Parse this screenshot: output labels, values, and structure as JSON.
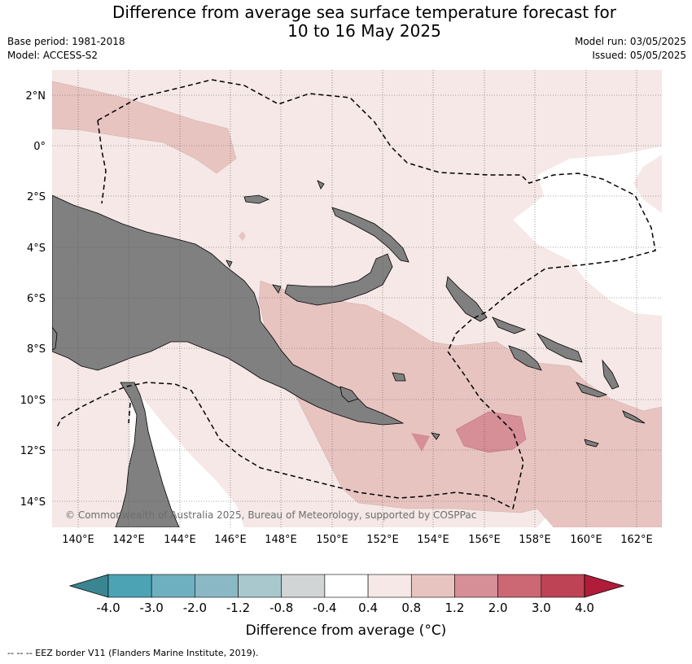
{
  "header": {
    "title_line1": "Difference from average sea surface temperature forecast for",
    "title_line2": "10 to 16 May 2025",
    "base_period": "Base period: 1981-2018",
    "model": "Model: ACCESS-S2",
    "model_run": "Model run: 03/05/2025",
    "issued": "Issued: 05/05/2025"
  },
  "map": {
    "lat_labels": [
      "2°N",
      "0°",
      "2°S",
      "4°S",
      "6°S",
      "8°S",
      "10°S",
      "12°S",
      "14°S"
    ],
    "lon_labels": [
      "140°E",
      "142°E",
      "144°E",
      "146°E",
      "148°E",
      "150°E",
      "152°E",
      "154°E",
      "156°E",
      "158°E",
      "160°E",
      "162°E"
    ],
    "copyright": "© Commonwealth of Australia 2025, Bureau of Meteorology, supported by COSPPac",
    "land_color": "#808080",
    "grid_on": true
  },
  "colorbar": {
    "ticks": [
      "-4.0",
      "-3.0",
      "-2.0",
      "-1.2",
      "-0.8",
      "-0.4",
      "0.4",
      "0.8",
      "1.2",
      "2.0",
      "3.0",
      "4.0"
    ],
    "colors": [
      "#3b8592",
      "#4ba3b4",
      "#6fb0c0",
      "#8bb8c5",
      "#a8c8cd",
      "#d2d5d6",
      "#ffffff",
      "#f5e8e6",
      "#e8c4c1",
      "#d68e97",
      "#cb6874",
      "#be4455",
      "#b01c3a"
    ],
    "title": "Difference from average (",
    "title_unit": "°C)"
  },
  "footnote": "-- -- -- EEZ border V11 (Flanders Marine Institute, 2019)."
}
